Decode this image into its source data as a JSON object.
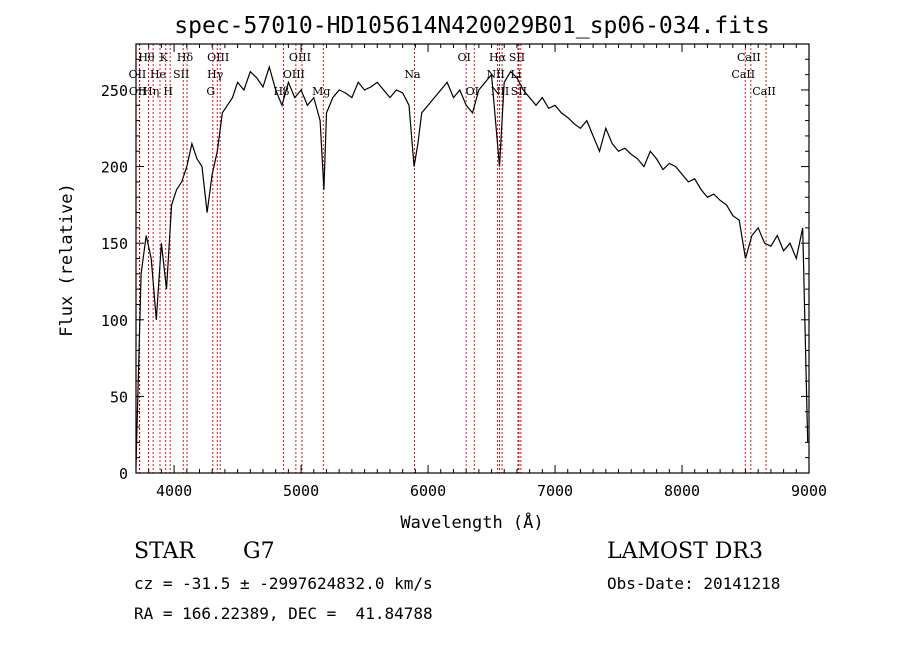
{
  "chart_data": {
    "type": "line",
    "title": "spec-57010-HD105614N420029B01_sp06-034.fits",
    "xlabel": "Wavelength (Å)",
    "ylabel": "Flux (relative)",
    "xlim": [
      3700,
      9000
    ],
    "ylim": [
      0,
      280
    ],
    "xticks": [
      "4000",
      "5000",
      "6000",
      "7000",
      "8000",
      "9000"
    ],
    "yticks": [
      "0",
      "50",
      "100",
      "150",
      "200",
      "250"
    ],
    "grid": false,
    "series": [
      {
        "name": "Flux",
        "x": [
          3700,
          3740,
          3780,
          3820,
          3860,
          3900,
          3940,
          3980,
          4020,
          4060,
          4100,
          4140,
          4180,
          4220,
          4260,
          4300,
          4340,
          4380,
          4420,
          4460,
          4500,
          4550,
          4600,
          4650,
          4700,
          4750,
          4800,
          4850,
          4900,
          4950,
          5000,
          5050,
          5100,
          5150,
          5180,
          5200,
          5250,
          5300,
          5350,
          5400,
          5450,
          5500,
          5550,
          5600,
          5650,
          5700,
          5750,
          5800,
          5850,
          5890,
          5920,
          5950,
          6000,
          6050,
          6100,
          6150,
          6200,
          6250,
          6300,
          6350,
          6400,
          6450,
          6500,
          6563,
          6600,
          6650,
          6700,
          6750,
          6800,
          6850,
          6900,
          6950,
          7000,
          7050,
          7100,
          7150,
          7200,
          7250,
          7300,
          7350,
          7400,
          7450,
          7500,
          7550,
          7600,
          7650,
          7700,
          7750,
          7800,
          7850,
          7900,
          7950,
          8000,
          8050,
          8100,
          8150,
          8200,
          8250,
          8300,
          8350,
          8400,
          8450,
          8500,
          8550,
          8600,
          8650,
          8700,
          8750,
          8800,
          8850,
          8900,
          8950,
          8990
        ],
        "values": [
          5,
          130,
          155,
          140,
          100,
          150,
          120,
          175,
          185,
          190,
          200,
          215,
          205,
          200,
          170,
          195,
          210,
          235,
          240,
          245,
          255,
          250,
          262,
          258,
          252,
          265,
          250,
          240,
          255,
          245,
          250,
          240,
          245,
          230,
          185,
          235,
          245,
          250,
          248,
          245,
          255,
          250,
          252,
          255,
          250,
          245,
          250,
          248,
          240,
          200,
          215,
          235,
          240,
          245,
          250,
          255,
          245,
          250,
          240,
          235,
          250,
          255,
          260,
          200,
          255,
          262,
          258,
          250,
          245,
          240,
          245,
          238,
          240,
          235,
          232,
          228,
          225,
          230,
          220,
          210,
          225,
          215,
          210,
          212,
          208,
          205,
          200,
          210,
          205,
          198,
          202,
          200,
          195,
          190,
          192,
          185,
          180,
          182,
          178,
          175,
          168,
          165,
          140,
          155,
          160,
          150,
          148,
          155,
          145,
          150,
          140,
          160,
          20
        ],
        "color": "#000000"
      }
    ],
    "lines": [
      {
        "label": "Hθ",
        "wavelength": 3798,
        "row": 1
      },
      {
        "label": "OII",
        "wavelength": 3727,
        "row": 2
      },
      {
        "label": "OII",
        "wavelength": 3729,
        "row": 3
      },
      {
        "label": "Hη",
        "wavelength": 3835,
        "row": 3
      },
      {
        "label": "He",
        "wavelength": 3889,
        "row": 2
      },
      {
        "label": "K",
        "wavelength": 3934,
        "row": 1
      },
      {
        "label": "H",
        "wavelength": 3969,
        "row": 3
      },
      {
        "label": "SII",
        "wavelength": 4072,
        "row": 2
      },
      {
        "label": "Hδ",
        "wavelength": 4102,
        "row": 1
      },
      {
        "label": "OIII",
        "wavelength": 4363,
        "row": 1
      },
      {
        "label": "Hγ",
        "wavelength": 4340,
        "row": 2
      },
      {
        "label": "G",
        "wavelength": 4305,
        "row": 3
      },
      {
        "label": "Hβ",
        "wavelength": 4861,
        "row": 3
      },
      {
        "label": "OIII",
        "wavelength": 4959,
        "row": 2
      },
      {
        "label": "OIII",
        "wavelength": 5007,
        "row": 1
      },
      {
        "label": "Mg",
        "wavelength": 5175,
        "row": 3
      },
      {
        "label": "Na",
        "wavelength": 5893,
        "row": 2
      },
      {
        "label": "OI",
        "wavelength": 6300,
        "row": 1
      },
      {
        "label": "OI",
        "wavelength": 6364,
        "row": 3
      },
      {
        "label": "Hα",
        "wavelength": 6563,
        "row": 1
      },
      {
        "label": "NII",
        "wavelength": 6548,
        "row": 2
      },
      {
        "label": "NII",
        "wavelength": 6583,
        "row": 3
      },
      {
        "label": "SII",
        "wavelength": 6716,
        "row": 1
      },
      {
        "label": "SII",
        "wavelength": 6731,
        "row": 3
      },
      {
        "label": "Li",
        "wavelength": 6708,
        "row": 2
      },
      {
        "label": "CaII",
        "wavelength": 8498,
        "row": 2
      },
      {
        "label": "CaII",
        "wavelength": 8542,
        "row": 1
      },
      {
        "label": "CaII",
        "wavelength": 8662,
        "row": 3
      }
    ]
  },
  "info": {
    "class_label": "STAR",
    "subclass": "G7",
    "survey": "LAMOST DR3",
    "cz": "cz = -31.5 ± -2997624832.0 km/s",
    "obs_date": "Obs-Date: 20141218",
    "radec": "RA = 166.22389, DEC =  41.84788"
  },
  "colors": {
    "line_marker": "#cc0000",
    "spectrum": "#000000"
  }
}
